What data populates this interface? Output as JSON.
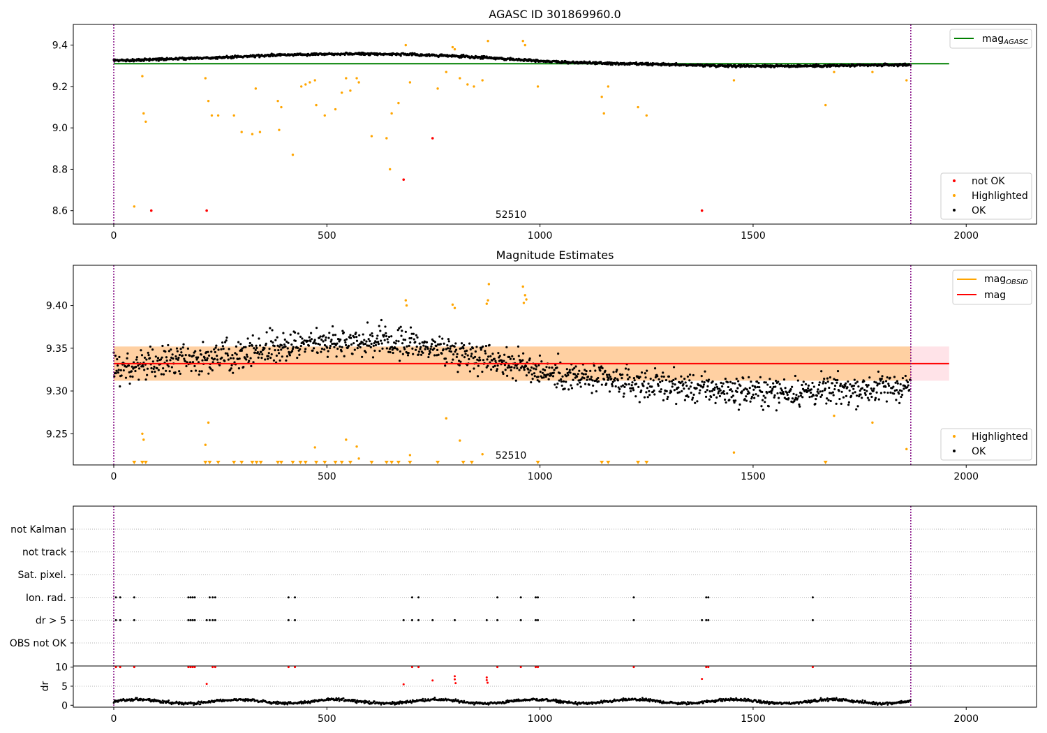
{
  "chart_data": [
    {
      "type": "scatter",
      "title": "AGASC ID 301869960.0",
      "xlabel": "",
      "ylabel": "",
      "xlim": [
        -95,
        2165
      ],
      "ylim": [
        8.535,
        9.5
      ],
      "xticks": [
        0,
        500,
        1000,
        1500,
        2000
      ],
      "yticks": [
        8.6,
        8.8,
        9.0,
        9.2,
        9.4
      ],
      "ytick_labels": [
        "8.6",
        "8.8",
        "9.0",
        "9.2",
        "9.4"
      ],
      "grid": false,
      "obsid_label": "52510",
      "obs_boundaries": [
        0,
        1870
      ],
      "reference_lines": [
        {
          "name": "mag_AGASC",
          "y": 9.31,
          "x": [
            0,
            1960
          ],
          "color": "#008000"
        }
      ],
      "series": [
        {
          "name": "not OK",
          "color": "#ff0000",
          "points": [
            [
              88,
              8.6
            ],
            [
              218,
              8.6
            ],
            [
              680,
              8.75
            ],
            [
              748,
              8.95
            ],
            [
              1380,
              8.6
            ]
          ]
        },
        {
          "name": "Highlighted",
          "color": "#ffa500",
          "points": [
            [
              48,
              8.62
            ],
            [
              67,
              9.25
            ],
            [
              70,
              9.07
            ],
            [
              75,
              9.03
            ],
            [
              215,
              9.24
            ],
            [
              222,
              9.13
            ],
            [
              230,
              9.06
            ],
            [
              245,
              9.06
            ],
            [
              282,
              9.06
            ],
            [
              300,
              8.98
            ],
            [
              325,
              8.97
            ],
            [
              333,
              9.19
            ],
            [
              343,
              8.98
            ],
            [
              385,
              9.13
            ],
            [
              388,
              8.99
            ],
            [
              393,
              9.1
            ],
            [
              420,
              8.87
            ],
            [
              440,
              9.2
            ],
            [
              450,
              9.21
            ],
            [
              460,
              9.22
            ],
            [
              472,
              9.23
            ],
            [
              475,
              9.11
            ],
            [
              495,
              9.06
            ],
            [
              520,
              9.09
            ],
            [
              535,
              9.17
            ],
            [
              545,
              9.24
            ],
            [
              555,
              9.18
            ],
            [
              570,
              9.24
            ],
            [
              575,
              9.22
            ],
            [
              605,
              8.96
            ],
            [
              640,
              8.95
            ],
            [
              648,
              8.8
            ],
            [
              652,
              9.07
            ],
            [
              668,
              9.12
            ],
            [
              685,
              9.4
            ],
            [
              695,
              9.22
            ],
            [
              760,
              9.19
            ],
            [
              780,
              9.27
            ],
            [
              795,
              9.39
            ],
            [
              800,
              9.38
            ],
            [
              812,
              9.24
            ],
            [
              830,
              9.21
            ],
            [
              845,
              9.2
            ],
            [
              865,
              9.23
            ],
            [
              878,
              9.42
            ],
            [
              960,
              9.42
            ],
            [
              965,
              9.4
            ],
            [
              995,
              9.2
            ],
            [
              1145,
              9.15
            ],
            [
              1150,
              9.07
            ],
            [
              1160,
              9.2
            ],
            [
              1230,
              9.1
            ],
            [
              1250,
              9.06
            ],
            [
              1455,
              9.23
            ],
            [
              1670,
              9.11
            ],
            [
              1690,
              9.27
            ],
            [
              1780,
              9.27
            ],
            [
              1860,
              9.23
            ]
          ]
        }
      ],
      "ok_series": {
        "name": "OK",
        "color": "#000000",
        "x_range": [
          0,
          1870
        ],
        "points_note": ""
      },
      "legend": [
        {
          "label": "mag",
          "subscript": "AGASC",
          "kind": "line",
          "color": "#008000",
          "placement": "top-right"
        },
        {
          "label": "not OK",
          "kind": "dot",
          "color": "#ff0000",
          "placement": "bottom-right"
        },
        {
          "label": "Highlighted",
          "kind": "dot",
          "color": "#ffa500",
          "placement": "bottom-right"
        },
        {
          "label": "OK",
          "kind": "dot",
          "color": "#000000",
          "placement": "bottom-right"
        }
      ]
    },
    {
      "type": "scatter",
      "title": "Magnitude Estimates",
      "xlabel": "",
      "ylabel": "",
      "xlim": [
        -95,
        2165
      ],
      "ylim": [
        9.2135,
        9.447
      ],
      "xticks": [
        0,
        500,
        1000,
        1500,
        2000
      ],
      "yticks": [
        9.25,
        9.3,
        9.35,
        9.4
      ],
      "ytick_labels": [
        "9.25",
        "9.30",
        "9.35",
        "9.40"
      ],
      "grid": false,
      "obsid_label": "52510",
      "obs_boundaries": [
        0,
        1870
      ],
      "reference_lines": [
        {
          "name": "mag",
          "y": 9.332,
          "x": [
            0,
            1960
          ],
          "color": "#ff0000"
        }
      ],
      "bands": [
        {
          "y": [
            9.312,
            9.352
          ],
          "x": [
            0,
            1960
          ],
          "color": "#ffc0cb"
        },
        {
          "y": [
            9.312,
            9.352
          ],
          "x": [
            0,
            1870
          ],
          "color": "#ffa500"
        }
      ],
      "series": [
        {
          "name": "Highlighted",
          "color": "#ffa500",
          "points": [
            [
              67,
              9.25
            ],
            [
              70,
              9.243
            ],
            [
              215,
              9.237
            ],
            [
              222,
              9.263
            ],
            [
              472,
              9.234
            ],
            [
              545,
              9.243
            ],
            [
              570,
              9.235
            ],
            [
              575,
              9.221
            ],
            [
              685,
              9.406
            ],
            [
              687,
              9.4
            ],
            [
              695,
              9.225
            ],
            [
              780,
              9.268
            ],
            [
              795,
              9.401
            ],
            [
              800,
              9.397
            ],
            [
              812,
              9.242
            ],
            [
              865,
              9.226
            ],
            [
              875,
              9.402
            ],
            [
              878,
              9.406
            ],
            [
              880,
              9.425
            ],
            [
              960,
              9.422
            ],
            [
              962,
              9.403
            ],
            [
              965,
              9.412
            ],
            [
              968,
              9.407
            ],
            [
              1455,
              9.228
            ],
            [
              1690,
              9.271
            ],
            [
              1780,
              9.263
            ],
            [
              1860,
              9.232
            ]
          ]
        },
        {
          "name": "Highlighted (below range)",
          "color": "#ffa500",
          "marker": "triangle-down",
          "points": [
            [
              48,
              9.2135
            ],
            [
              67,
              9.2135
            ],
            [
              75,
              9.2135
            ],
            [
              215,
              9.2135
            ],
            [
              225,
              9.2135
            ],
            [
              245,
              9.2135
            ],
            [
              282,
              9.2135
            ],
            [
              300,
              9.2135
            ],
            [
              325,
              9.2135
            ],
            [
              335,
              9.2135
            ],
            [
              345,
              9.2135
            ],
            [
              385,
              9.2135
            ],
            [
              393,
              9.2135
            ],
            [
              420,
              9.2135
            ],
            [
              438,
              9.2135
            ],
            [
              450,
              9.2135
            ],
            [
              475,
              9.2135
            ],
            [
              495,
              9.2135
            ],
            [
              520,
              9.2135
            ],
            [
              535,
              9.2135
            ],
            [
              555,
              9.2135
            ],
            [
              605,
              9.2135
            ],
            [
              640,
              9.2135
            ],
            [
              652,
              9.2135
            ],
            [
              668,
              9.2135
            ],
            [
              695,
              9.2135
            ],
            [
              760,
              9.2135
            ],
            [
              820,
              9.2135
            ],
            [
              840,
              9.2135
            ],
            [
              995,
              9.2135
            ],
            [
              1145,
              9.2135
            ],
            [
              1160,
              9.2135
            ],
            [
              1230,
              9.2135
            ],
            [
              1250,
              9.2135
            ],
            [
              1670,
              9.2135
            ]
          ]
        }
      ],
      "ok_series": {
        "name": "OK",
        "color": "#000000",
        "x_range": [
          0,
          1870
        ]
      },
      "legend": [
        {
          "label": "mag",
          "subscript": "OBSID",
          "kind": "line",
          "color": "#ffa500",
          "placement": "top-right"
        },
        {
          "label": "mag",
          "kind": "line",
          "color": "#ff0000",
          "placement": "top-right"
        },
        {
          "label": "Highlighted",
          "kind": "dot",
          "color": "#ffa500",
          "placement": "bottom-right"
        },
        {
          "label": "OK",
          "kind": "dot",
          "color": "#000000",
          "placement": "bottom-right"
        }
      ]
    },
    {
      "type": "scatter",
      "title": "",
      "xlabel": "",
      "ylabel": "",
      "xlim": [
        -95,
        2165
      ],
      "xticks": [
        0,
        500,
        1000,
        1500,
        2000
      ],
      "grid": true,
      "obs_boundaries": [
        0,
        1870
      ],
      "categories": [
        "not Kalman",
        "not track",
        "Sat. pixel.",
        "Ion. rad.",
        "dr > 5",
        "OBS not OK"
      ],
      "flags": {
        "Ion. rad.": [
          5,
          15,
          48,
          175,
          180,
          185,
          190,
          225,
          232,
          238,
          410,
          425,
          700,
          715,
          900,
          955,
          990,
          995,
          1220,
          1390,
          1395,
          1640
        ],
        "dr > 5": [
          5,
          15,
          48,
          175,
          180,
          185,
          190,
          218,
          225,
          232,
          238,
          410,
          425,
          680,
          700,
          715,
          748,
          800,
          875,
          900,
          955,
          990,
          995,
          1220,
          1380,
          1390,
          1395,
          1640
        ]
      }
    },
    {
      "type": "scatter",
      "title": "",
      "xlabel": "",
      "ylabel": "dr",
      "xlim": [
        -95,
        2165
      ],
      "ylim": [
        -0.5,
        10.3
      ],
      "xticks": [
        0,
        500,
        1000,
        1500,
        2000
      ],
      "yticks": [
        0,
        5,
        10
      ],
      "ytick_labels": [
        "0",
        "5",
        "10"
      ],
      "grid": true,
      "obs_boundaries": [
        0,
        1870
      ],
      "series": [
        {
          "name": "dr > 5",
          "color": "#ff0000",
          "points": [
            [
              5,
              10
            ],
            [
              15,
              10
            ],
            [
              48,
              10
            ],
            [
              175,
              10
            ],
            [
              180,
              10
            ],
            [
              185,
              10
            ],
            [
              190,
              10
            ],
            [
              232,
              10
            ],
            [
              238,
              10
            ],
            [
              410,
              10
            ],
            [
              425,
              10
            ],
            [
              700,
              10
            ],
            [
              715,
              10
            ],
            [
              900,
              10
            ],
            [
              955,
              10
            ],
            [
              990,
              10
            ],
            [
              995,
              10
            ],
            [
              1220,
              10
            ],
            [
              1390,
              10
            ],
            [
              1395,
              10
            ],
            [
              1640,
              10
            ],
            [
              218,
              5.6
            ],
            [
              680,
              5.5
            ],
            [
              748,
              6.5
            ],
            [
              800,
              7.6
            ],
            [
              800,
              6.8
            ],
            [
              802,
              5.8
            ],
            [
              875,
              7.3
            ],
            [
              875,
              6.6
            ],
            [
              877,
              5.9
            ],
            [
              1380,
              6.9
            ]
          ]
        },
        {
          "name": "dr",
          "color": "#000000",
          "x_range": [
            0,
            1870
          ]
        }
      ]
    }
  ],
  "tick_labels": {
    "x": [
      "0",
      "500",
      "1000",
      "1500",
      "2000"
    ]
  }
}
